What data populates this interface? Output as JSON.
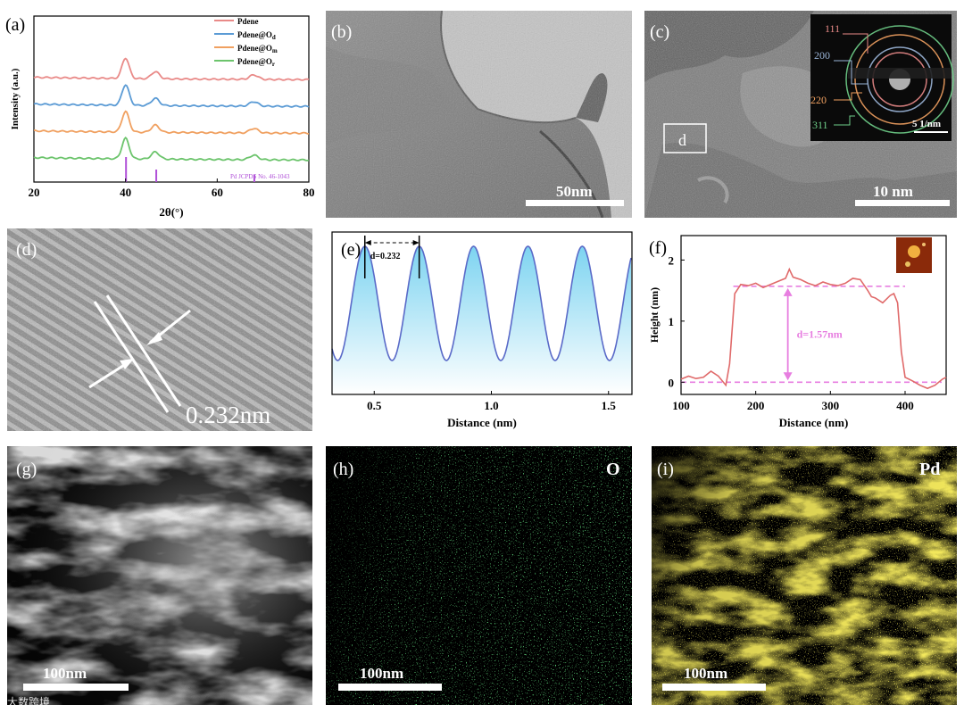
{
  "panels": {
    "a": {
      "label": "(a)"
    },
    "b": {
      "label": "(b)",
      "scalebar": "50nm"
    },
    "c": {
      "label": "(c)",
      "scalebar": "10 nm",
      "box_label": "d",
      "saed": {
        "rings": [
          "111",
          "200",
          "220",
          "311"
        ],
        "scale": "5 1/nm"
      }
    },
    "d": {
      "label": "(d)",
      "spacing": "0.232nm"
    },
    "e": {
      "label": "(e)"
    },
    "f": {
      "label": "(f)"
    },
    "g": {
      "label": "(g)",
      "scalebar": "100nm"
    },
    "h": {
      "label": "(h)",
      "scalebar": "100nm",
      "element": "O",
      "color": "#21c43a"
    },
    "i": {
      "label": "(i)",
      "scalebar": "100nm",
      "element": "Pd",
      "color": "#e8d21c"
    }
  },
  "watermark": "大数跨境",
  "chart_data": [
    {
      "id": "a",
      "type": "line",
      "xlabel": "2θ(°)",
      "ylabel": "Intensity (a.u.)",
      "xlim": [
        20,
        80
      ],
      "xticks": [
        20,
        40,
        60,
        80
      ],
      "series": [
        {
          "name": "Pdene",
          "color": "#e98a88",
          "offset": 3
        },
        {
          "name": "Pdene@O",
          "sub": "d",
          "color": "#5b9bd5",
          "offset": 2
        },
        {
          "name": "Pdene@O",
          "sub": "m",
          "color": "#f0a060",
          "offset": 1
        },
        {
          "name": "Pdene@O",
          "sub": "r",
          "color": "#6cc46c",
          "offset": 0
        }
      ],
      "peaks": [
        [
          40,
          1.0,
          1.1
        ],
        [
          46.5,
          0.35,
          1.2
        ],
        [
          68,
          0.22,
          1.3
        ]
      ],
      "reference": {
        "label": "Pd JCPDS No. 46-1043",
        "color": "#b050d8",
        "lines": [
          {
            "x": 40.1,
            "h": 1.0
          },
          {
            "x": 46.7,
            "h": 0.5
          },
          {
            "x": 68.1,
            "h": 0.3
          }
        ]
      }
    },
    {
      "id": "e",
      "type": "line",
      "xlabel": "Distance (nm)",
      "xlim": [
        0.32,
        1.6
      ],
      "xticks": [
        0.5,
        1.0,
        1.5
      ],
      "period": 0.232,
      "peak_positions": [
        0.46,
        0.692,
        0.924,
        1.156,
        1.388
      ],
      "annotation": "d=0.232"
    },
    {
      "id": "f",
      "type": "line",
      "xlabel": "Distance (nm)",
      "ylabel": "Height (nm)",
      "xlim": [
        100,
        455
      ],
      "ylim": [
        -0.2,
        2.4
      ],
      "xticks": [
        100,
        200,
        300,
        400
      ],
      "yticks": [
        0,
        1,
        2
      ],
      "baseline": 0,
      "plateau": 1.57,
      "annotation": "d=1.57nm",
      "x": [
        100,
        110,
        120,
        130,
        140,
        150,
        160,
        165,
        172,
        180,
        190,
        200,
        210,
        220,
        230,
        240,
        245,
        250,
        260,
        270,
        280,
        290,
        300,
        310,
        320,
        330,
        340,
        350,
        355,
        360,
        370,
        380,
        385,
        390,
        395,
        400,
        410,
        420,
        430,
        440,
        450,
        455
      ],
      "y": [
        0.05,
        0.1,
        0.06,
        0.08,
        0.18,
        0.1,
        -0.05,
        0.3,
        1.45,
        1.6,
        1.58,
        1.62,
        1.55,
        1.6,
        1.65,
        1.7,
        1.85,
        1.72,
        1.68,
        1.62,
        1.58,
        1.64,
        1.6,
        1.58,
        1.62,
        1.7,
        1.68,
        1.5,
        1.4,
        1.38,
        1.3,
        1.42,
        1.45,
        1.3,
        0.5,
        0.08,
        0.02,
        -0.05,
        -0.1,
        -0.05,
        0.05,
        0.08
      ]
    }
  ]
}
